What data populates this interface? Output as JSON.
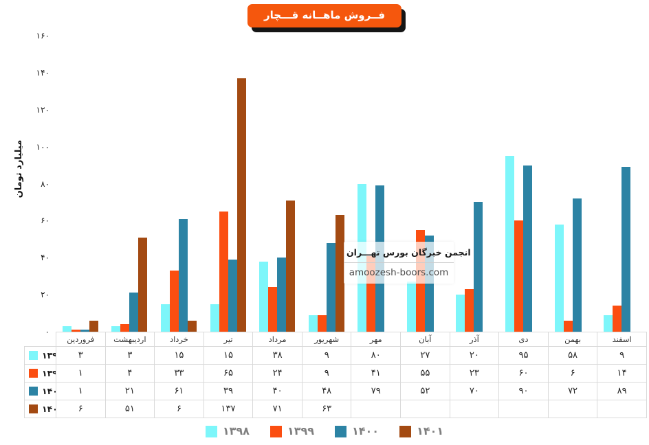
{
  "chart_data": {
    "type": "bar",
    "title": "فــروش ماهــانه قـــچار",
    "xlabel": "",
    "ylabel": "میلیارد تومان",
    "ylim": [
      0,
      160
    ],
    "ytick_step": 20,
    "grid": false,
    "legend_position": "bottom",
    "numerals": "persian",
    "categories": [
      "فروردین",
      "اردیبهشت",
      "خرداد",
      "تیر",
      "مرداد",
      "شهریور",
      "مهر",
      "آبان",
      "آذر",
      "دی",
      "بهمن",
      "اسفند"
    ],
    "series": [
      {
        "name": "۱۳۹۸",
        "name_latin": "1398",
        "color": "#7DF6FA",
        "values": [
          3,
          3,
          15,
          15,
          38,
          9,
          80,
          27,
          20,
          95,
          58,
          9
        ]
      },
      {
        "name": "۱۳۹۹",
        "name_latin": "1399",
        "color": "#FB4E11",
        "values": [
          1,
          4,
          33,
          65,
          24,
          9,
          41,
          55,
          23,
          60,
          6,
          14
        ]
      },
      {
        "name": "۱۴۰۰",
        "name_latin": "1400",
        "color": "#2C83A4",
        "values": [
          1,
          21,
          61,
          39,
          40,
          48,
          79,
          52,
          70,
          90,
          72,
          89
        ]
      },
      {
        "name": "۱۴۰۱",
        "name_latin": "1401",
        "color": "#A34A12",
        "values": [
          6,
          51,
          6,
          137,
          71,
          63,
          null,
          null,
          null,
          null,
          null,
          null
        ]
      }
    ]
  },
  "watermark": {
    "org": "انجمن خبرگان بورس تهـــران",
    "site": "amoozesh-boors.com"
  },
  "colors": {
    "title_badge": "#F5570D",
    "title_text": "#FFFFFF",
    "title_shadow": "#151515",
    "legend_text": "#7F7F7F",
    "axis_line": "#C6C6C6",
    "table_border": "#D9D9D9"
  }
}
